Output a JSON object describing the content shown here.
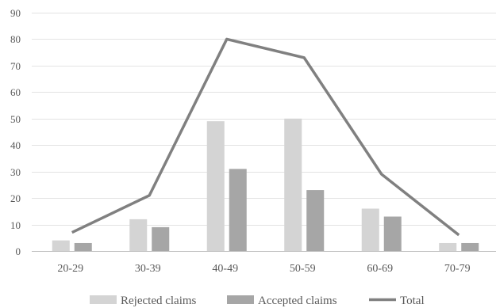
{
  "chart_data": {
    "type": "bar",
    "categories": [
      "20-29",
      "30-39",
      "40-49",
      "50-59",
      "60-69",
      "70-79"
    ],
    "series": [
      {
        "name": "Rejected claims",
        "kind": "bar",
        "color": "#d4d4d4",
        "values": [
          4,
          12,
          49,
          50,
          16,
          3
        ]
      },
      {
        "name": "Accepted claims",
        "kind": "bar",
        "color": "#a6a6a6",
        "values": [
          3,
          9,
          31,
          23,
          13,
          3
        ]
      },
      {
        "name": "Total",
        "kind": "line",
        "color": "#808080",
        "values": [
          7,
          21,
          80,
          73,
          29,
          6
        ]
      }
    ],
    "ylim": [
      0,
      90
    ],
    "yticks": [
      0,
      10,
      20,
      30,
      40,
      50,
      60,
      70,
      80,
      90
    ],
    "grid": true,
    "legend_position": "bottom",
    "title": "",
    "xlabel": "",
    "ylabel": ""
  }
}
